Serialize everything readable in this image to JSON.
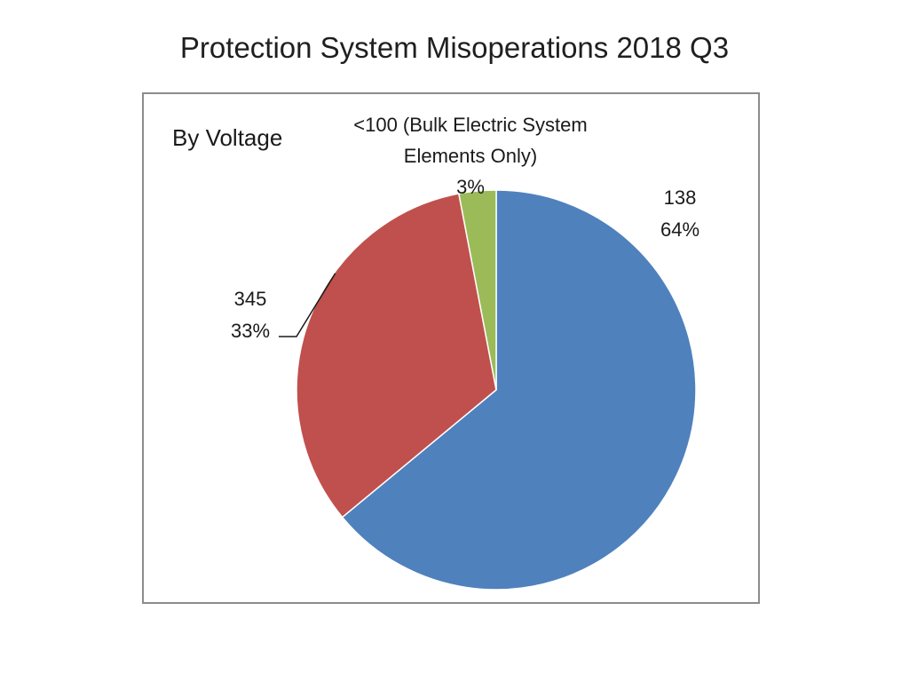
{
  "title": "Protection System Misoperations 2018 Q3",
  "chart_data": {
    "type": "pie",
    "subtitle": "By Voltage",
    "slices": [
      {
        "category": "138",
        "percent_label": "64%",
        "value": 64,
        "color": "#4f81bd"
      },
      {
        "category": "345",
        "percent_label": "33%",
        "value": 33,
        "color": "#c0504d"
      },
      {
        "category": "<100 (Bulk Electric System Elements Only)",
        "category_lines": [
          "<100 (Bulk Electric System",
          "Elements  Only)"
        ],
        "percent_label": "3%",
        "value": 3,
        "color": "#9bbb59"
      }
    ],
    "start_angle": "12 o'clock, clockwise",
    "legend": "none (data labels with category and percentage)"
  }
}
